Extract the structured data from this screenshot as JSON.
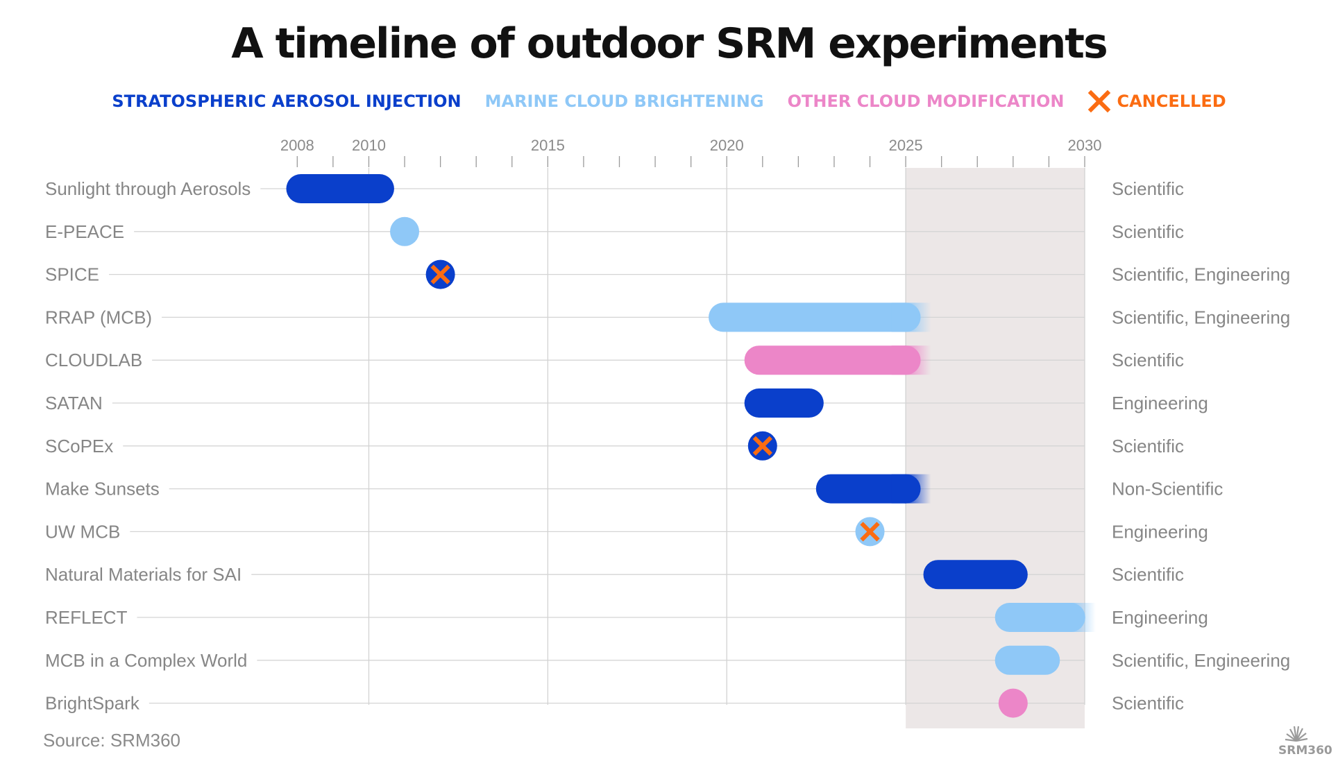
{
  "title": "A timeline of outdoor SRM experiments",
  "legend": [
    {
      "key": "sai",
      "label": "STRATOSPHERIC AEROSOL INJECTION",
      "color": "#0a3fcb"
    },
    {
      "key": "mcb",
      "label": "MARINE CLOUD BRIGHTENING",
      "color": "#8fc8f7"
    },
    {
      "key": "ocm",
      "label": "OTHER CLOUD MODIFICATION",
      "color": "#ec86c8"
    },
    {
      "key": "cancelled",
      "label": "CANCELLED",
      "color": "#fb6c12"
    }
  ],
  "source": "Source: SRM360",
  "logo_text": "SRM360",
  "chart_data": {
    "type": "timeline",
    "xlim": [
      2005.9,
      2030.0
    ],
    "x_tick_labels": [
      2008,
      2010,
      2015,
      2020,
      2025,
      2030
    ],
    "x_minor_ticks": [
      2008,
      2009,
      2010,
      2011,
      2012,
      2013,
      2014,
      2015,
      2016,
      2017,
      2018,
      2019,
      2020,
      2021,
      2022,
      2023,
      2024,
      2025,
      2026,
      2027,
      2028,
      2029,
      2030
    ],
    "grid_years": [
      2010,
      2015,
      2020,
      2025,
      2030
    ],
    "future_shade_from": 2025.0,
    "experiments": [
      {
        "name": "Sunlight through Aerosols",
        "category": "sai",
        "start": 2008.1,
        "end": 2010.3,
        "ongoing": false,
        "cancelled": false,
        "purpose": "Scientific"
      },
      {
        "name": "E-PEACE",
        "category": "mcb",
        "start": 2011.0,
        "end": 2011.0,
        "ongoing": false,
        "cancelled": false,
        "purpose": "Scientific"
      },
      {
        "name": "SPICE",
        "category": "sai",
        "start": 2012.0,
        "end": 2012.0,
        "ongoing": false,
        "cancelled": true,
        "purpose": "Scientific, Engineering"
      },
      {
        "name": "RRAP (MCB)",
        "category": "mcb",
        "start": 2019.9,
        "end": 2025.3,
        "ongoing": true,
        "cancelled": false,
        "purpose": "Scientific, Engineering"
      },
      {
        "name": "CLOUDLAB",
        "category": "ocm",
        "start": 2020.9,
        "end": 2025.3,
        "ongoing": true,
        "cancelled": false,
        "purpose": "Scientific"
      },
      {
        "name": "SATAN",
        "category": "sai",
        "start": 2020.9,
        "end": 2022.3,
        "ongoing": false,
        "cancelled": false,
        "purpose": "Engineering"
      },
      {
        "name": "SCoPEx",
        "category": "sai",
        "start": 2021.0,
        "end": 2021.0,
        "ongoing": false,
        "cancelled": true,
        "purpose": "Scientific"
      },
      {
        "name": "Make Sunsets",
        "category": "sai",
        "start": 2022.9,
        "end": 2025.3,
        "ongoing": true,
        "cancelled": false,
        "purpose": "Non-Scientific"
      },
      {
        "name": "UW MCB",
        "category": "mcb",
        "start": 2024.0,
        "end": 2024.0,
        "ongoing": false,
        "cancelled": true,
        "purpose": "Engineering"
      },
      {
        "name": "Natural Materials for SAI",
        "category": "sai",
        "start": 2025.9,
        "end": 2028.0,
        "ongoing": false,
        "cancelled": false,
        "purpose": "Scientific"
      },
      {
        "name": "REFLECT",
        "category": "mcb",
        "start": 2027.9,
        "end": 2029.9,
        "ongoing": true,
        "cancelled": false,
        "purpose": "Engineering"
      },
      {
        "name": "MCB in a Complex World",
        "category": "mcb",
        "start": 2027.9,
        "end": 2028.9,
        "ongoing": false,
        "cancelled": false,
        "purpose": "Scientific, Engineering"
      },
      {
        "name": "BrightSpark",
        "category": "ocm",
        "start": 2028.0,
        "end": 2028.0,
        "ongoing": false,
        "cancelled": false,
        "purpose": "Scientific"
      }
    ]
  }
}
